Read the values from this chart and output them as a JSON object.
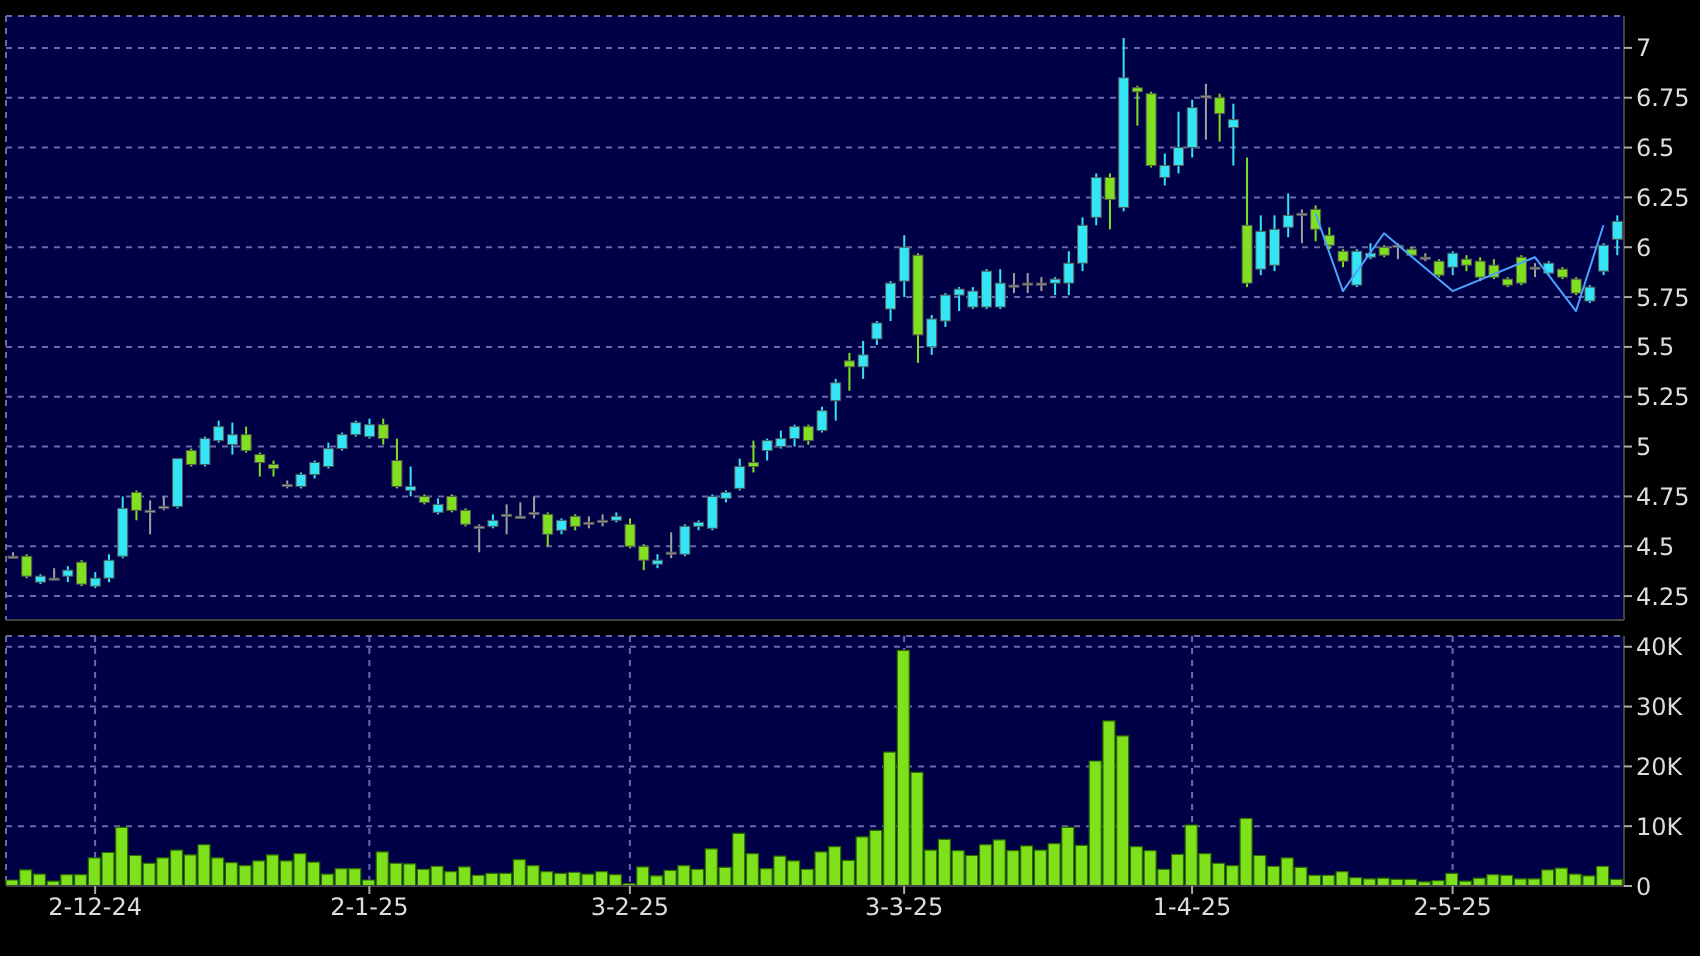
{
  "chart_data": [
    {
      "type": "candlestick",
      "categories": [
        null,
        null,
        null,
        null,
        null,
        null,
        null,
        null,
        null,
        null,
        null,
        null,
        null,
        null,
        null,
        null,
        null,
        null,
        null,
        null,
        null,
        null,
        null,
        null,
        null,
        null,
        null,
        null,
        null,
        null,
        null,
        null,
        null,
        null,
        null,
        null,
        null,
        null,
        null,
        null,
        null,
        null,
        null,
        null,
        null,
        null,
        null,
        null,
        null,
        null,
        null,
        null,
        null,
        null,
        null,
        null,
        null,
        null,
        null,
        null,
        null,
        null,
        null,
        null,
        null,
        null,
        null,
        null,
        null,
        null,
        null,
        null,
        null,
        null,
        null,
        null,
        null,
        null,
        null,
        null,
        null,
        null,
        null,
        null,
        null,
        null,
        null,
        null,
        null,
        null,
        null,
        null,
        null,
        null,
        null,
        null,
        null,
        null,
        null,
        null,
        null,
        null,
        null,
        null,
        null,
        null,
        null,
        null,
        null,
        null,
        null,
        null,
        null,
        null,
        null,
        null,
        null,
        null
      ],
      "ohlc": [
        [
          4.45,
          4.47,
          4.44,
          4.45
        ],
        [
          4.45,
          4.46,
          4.34,
          4.35
        ],
        [
          4.32,
          4.36,
          4.31,
          4.35
        ],
        [
          4.34,
          4.39,
          4.33,
          4.34
        ],
        [
          4.35,
          4.4,
          4.32,
          4.38
        ],
        [
          4.42,
          4.43,
          4.3,
          4.31
        ],
        [
          4.3,
          4.37,
          4.29,
          4.34
        ],
        [
          4.34,
          4.46,
          4.32,
          4.43
        ],
        [
          4.45,
          4.75,
          4.44,
          4.69
        ],
        [
          4.77,
          4.78,
          4.63,
          4.68
        ],
        [
          4.68,
          4.73,
          4.56,
          4.68
        ],
        [
          4.7,
          4.75,
          4.68,
          4.7
        ],
        [
          4.7,
          4.94,
          4.69,
          4.94
        ],
        [
          4.98,
          4.99,
          4.9,
          4.91
        ],
        [
          4.91,
          5.05,
          4.9,
          5.04
        ],
        [
          5.03,
          5.13,
          5.02,
          5.1
        ],
        [
          5.01,
          5.12,
          4.96,
          5.06
        ],
        [
          5.06,
          5.1,
          4.97,
          4.98
        ],
        [
          4.96,
          4.97,
          4.85,
          4.92
        ],
        [
          4.91,
          4.93,
          4.85,
          4.89
        ],
        [
          4.81,
          4.83,
          4.79,
          4.81
        ],
        [
          4.8,
          4.87,
          4.79,
          4.86
        ],
        [
          4.86,
          4.93,
          4.84,
          4.92
        ],
        [
          4.9,
          5.02,
          4.89,
          4.99
        ],
        [
          4.99,
          5.07,
          4.98,
          5.06
        ],
        [
          5.06,
          5.13,
          5.05,
          5.12
        ],
        [
          5.05,
          5.14,
          5.04,
          5.11
        ],
        [
          5.11,
          5.14,
          5.01,
          5.04
        ],
        [
          4.93,
          5.04,
          4.79,
          4.8
        ],
        [
          4.78,
          4.9,
          4.75,
          4.8
        ],
        [
          4.75,
          4.76,
          4.71,
          4.72
        ],
        [
          4.67,
          4.74,
          4.66,
          4.71
        ],
        [
          4.75,
          4.76,
          4.67,
          4.68
        ],
        [
          4.68,
          4.69,
          4.6,
          4.61
        ],
        [
          4.6,
          4.61,
          4.47,
          4.6
        ],
        [
          4.6,
          4.66,
          4.59,
          4.63
        ],
        [
          4.66,
          4.71,
          4.56,
          4.66
        ],
        [
          4.65,
          4.72,
          4.64,
          4.65
        ],
        [
          4.67,
          4.75,
          4.64,
          4.67
        ],
        [
          4.66,
          4.67,
          4.5,
          4.56
        ],
        [
          4.58,
          4.64,
          4.56,
          4.63
        ],
        [
          4.65,
          4.66,
          4.58,
          4.6
        ],
        [
          4.62,
          4.65,
          4.59,
          4.62
        ],
        [
          4.63,
          4.66,
          4.6,
          4.63
        ],
        [
          4.63,
          4.67,
          4.62,
          4.65
        ],
        [
          4.61,
          4.64,
          4.49,
          4.5
        ],
        [
          4.5,
          4.51,
          4.38,
          4.43
        ],
        [
          4.41,
          4.46,
          4.39,
          4.43
        ],
        [
          4.47,
          4.57,
          4.44,
          4.47
        ],
        [
          4.46,
          4.61,
          4.45,
          4.6
        ],
        [
          4.6,
          4.63,
          4.58,
          4.62
        ],
        [
          4.59,
          4.76,
          4.58,
          4.75
        ],
        [
          4.74,
          4.78,
          4.72,
          4.77
        ],
        [
          4.79,
          4.94,
          4.78,
          4.9
        ],
        [
          4.92,
          5.03,
          4.87,
          4.9
        ],
        [
          4.98,
          5.04,
          4.93,
          5.03
        ],
        [
          5.0,
          5.08,
          4.99,
          5.04
        ],
        [
          5.04,
          5.11,
          5.0,
          5.1
        ],
        [
          5.1,
          5.11,
          5.01,
          5.03
        ],
        [
          5.08,
          5.2,
          5.07,
          5.18
        ],
        [
          5.23,
          5.34,
          5.13,
          5.32
        ],
        [
          5.43,
          5.47,
          5.28,
          5.4
        ],
        [
          5.4,
          5.53,
          5.34,
          5.46
        ],
        [
          5.54,
          5.63,
          5.51,
          5.62
        ],
        [
          5.69,
          5.83,
          5.63,
          5.82
        ],
        [
          5.83,
          6.06,
          5.75,
          6.0
        ],
        [
          5.96,
          5.97,
          5.42,
          5.56
        ],
        [
          5.5,
          5.66,
          5.46,
          5.64
        ],
        [
          5.63,
          5.77,
          5.6,
          5.76
        ],
        [
          5.76,
          5.8,
          5.68,
          5.79
        ],
        [
          5.7,
          5.8,
          5.69,
          5.78
        ],
        [
          5.7,
          5.89,
          5.69,
          5.88
        ],
        [
          5.7,
          5.89,
          5.69,
          5.82
        ],
        [
          5.81,
          5.87,
          5.77,
          5.81
        ],
        [
          5.82,
          5.87,
          5.77,
          5.82
        ],
        [
          5.82,
          5.85,
          5.78,
          5.82
        ],
        [
          5.82,
          5.85,
          5.76,
          5.84
        ],
        [
          5.82,
          5.98,
          5.76,
          5.92
        ],
        [
          5.92,
          6.15,
          5.88,
          6.11
        ],
        [
          6.15,
          6.37,
          6.11,
          6.35
        ],
        [
          6.35,
          6.37,
          6.09,
          6.24
        ],
        [
          6.2,
          7.05,
          6.18,
          6.85
        ],
        [
          6.8,
          6.81,
          6.61,
          6.78
        ],
        [
          6.77,
          6.78,
          6.4,
          6.41
        ],
        [
          6.35,
          6.47,
          6.31,
          6.41
        ],
        [
          6.41,
          6.68,
          6.37,
          6.5
        ],
        [
          6.5,
          6.74,
          6.45,
          6.7
        ],
        [
          6.76,
          6.82,
          6.54,
          6.76
        ],
        [
          6.75,
          6.77,
          6.53,
          6.67
        ],
        [
          6.6,
          6.72,
          6.41,
          6.64
        ],
        [
          6.11,
          6.45,
          5.8,
          5.82
        ],
        [
          5.89,
          6.16,
          5.86,
          6.08
        ],
        [
          5.91,
          6.16,
          5.88,
          6.09
        ],
        [
          6.1,
          6.27,
          6.05,
          6.16
        ],
        [
          6.17,
          6.19,
          6.02,
          6.17
        ],
        [
          6.19,
          6.21,
          6.03,
          6.09
        ],
        [
          6.06,
          6.1,
          5.99,
          6.01
        ],
        [
          5.98,
          5.99,
          5.9,
          5.93
        ],
        [
          5.81,
          5.99,
          5.8,
          5.98
        ],
        [
          5.95,
          6.02,
          5.94,
          5.97
        ],
        [
          6.0,
          6.01,
          5.95,
          5.96
        ],
        [
          6.01,
          6.02,
          5.94,
          6.01
        ],
        [
          5.99,
          6.0,
          5.95,
          5.96
        ],
        [
          5.95,
          5.97,
          5.93,
          5.95
        ],
        [
          5.93,
          5.94,
          5.85,
          5.86
        ],
        [
          5.9,
          5.98,
          5.86,
          5.97
        ],
        [
          5.94,
          5.96,
          5.88,
          5.91
        ],
        [
          5.93,
          5.95,
          5.83,
          5.85
        ],
        [
          5.91,
          5.94,
          5.84,
          5.85
        ],
        [
          5.84,
          5.85,
          5.8,
          5.81
        ],
        [
          5.95,
          5.96,
          5.81,
          5.82
        ],
        [
          5.9,
          5.92,
          5.85,
          5.9
        ],
        [
          5.87,
          5.93,
          5.86,
          5.92
        ],
        [
          5.89,
          5.9,
          5.84,
          5.85
        ],
        [
          5.84,
          5.85,
          5.76,
          5.77
        ],
        [
          5.73,
          5.81,
          5.72,
          5.8
        ],
        [
          5.88,
          6.02,
          5.86,
          6.01
        ],
        [
          6.04,
          6.16,
          5.96,
          6.13
        ]
      ],
      "colors": [
        "#a0a0a0",
        "#80e020",
        "#33e5f5",
        "#a0a0a0",
        "#33e5f5",
        "#80e020",
        "#33e5f5",
        "#33e5f5",
        "#33e5f5",
        "#80e020",
        "#a0a0a0",
        "#a0a0a0",
        "#33e5f5",
        "#80e020",
        "#33e5f5",
        "#33e5f5",
        "#33e5f5",
        "#80e020",
        "#80e020",
        "#80e020",
        "#a0a0a0",
        "#33e5f5",
        "#33e5f5",
        "#33e5f5",
        "#33e5f5",
        "#33e5f5",
        "#33e5f5",
        "#80e020",
        "#80e020",
        "#33e5f5",
        "#80e020",
        "#33e5f5",
        "#80e020",
        "#80e020",
        "#a0a0a0",
        "#33e5f5",
        "#a0a0a0",
        "#a0a0a0",
        "#a0a0a0",
        "#80e020",
        "#33e5f5",
        "#80e020",
        "#a0a0a0",
        "#a0a0a0",
        "#33e5f5",
        "#80e020",
        "#80e020",
        "#33e5f5",
        "#a0a0a0",
        "#33e5f5",
        "#33e5f5",
        "#33e5f5",
        "#33e5f5",
        "#33e5f5",
        "#80e020",
        "#33e5f5",
        "#33e5f5",
        "#33e5f5",
        "#80e020",
        "#33e5f5",
        "#33e5f5",
        "#80e020",
        "#33e5f5",
        "#33e5f5",
        "#33e5f5",
        "#33e5f5",
        "#80e020",
        "#33e5f5",
        "#33e5f5",
        "#33e5f5",
        "#33e5f5",
        "#33e5f5",
        "#33e5f5",
        "#a0a0a0",
        "#a0a0a0",
        "#a0a0a0",
        "#33e5f5",
        "#33e5f5",
        "#33e5f5",
        "#33e5f5",
        "#80e020",
        "#33e5f5",
        "#80e020",
        "#80e020",
        "#33e5f5",
        "#33e5f5",
        "#33e5f5",
        "#a0a0a0",
        "#80e020",
        "#33e5f5",
        "#80e020",
        "#33e5f5",
        "#33e5f5",
        "#33e5f5",
        "#a0a0a0",
        "#80e020",
        "#80e020",
        "#80e020",
        "#33e5f5",
        "#33e5f5",
        "#80e020",
        "#a0a0a0",
        "#80e020",
        "#a0a0a0",
        "#80e020",
        "#33e5f5",
        "#80e020",
        "#80e020",
        "#80e020",
        "#80e020",
        "#80e020",
        "#a0a0a0",
        "#33e5f5",
        "#80e020",
        "#80e020",
        "#33e5f5",
        "#33e5f5",
        "#33e5f5"
      ],
      "series": [
        {
          "type": "line",
          "color": "#4aa3ff",
          "values": [
            null,
            null,
            null,
            null,
            null,
            null,
            null,
            null,
            null,
            null,
            null,
            null,
            null,
            null,
            null,
            null,
            null,
            null,
            null,
            null,
            null,
            null,
            null,
            null,
            null,
            null,
            null,
            null,
            null,
            null,
            null,
            null,
            null,
            null,
            null,
            null,
            null,
            null,
            null,
            null,
            null,
            null,
            null,
            null,
            null,
            null,
            null,
            null,
            null,
            null,
            null,
            null,
            null,
            null,
            null,
            null,
            null,
            null,
            null,
            null,
            null,
            null,
            null,
            null,
            null,
            null,
            null,
            null,
            null,
            null,
            null,
            null,
            null,
            null,
            null,
            null,
            null,
            null,
            null,
            null,
            null,
            null,
            null,
            null,
            null,
            null,
            null,
            null,
            null,
            null,
            null,
            null,
            null,
            null,
            null,
            6.17,
            null,
            5.78,
            null,
            null,
            6.07,
            null,
            null,
            null,
            null,
            5.78,
            null,
            null,
            null,
            null,
            null,
            5.95,
            null,
            null,
            5.68,
            null,
            6.11,
            null
          ]
        }
      ],
      "ylim": [
        4.13,
        7.16
      ],
      "yticks": [
        4.25,
        4.5,
        4.75,
        5,
        5.25,
        5.5,
        5.75,
        6,
        6.25,
        6.5,
        6.75,
        7
      ],
      "grid": true,
      "tick_labels": "y"
    },
    {
      "type": "bar",
      "categories": [
        null,
        null,
        null,
        null,
        null,
        null,
        "2-12-24",
        null,
        null,
        null,
        null,
        null,
        null,
        null,
        null,
        null,
        null,
        null,
        null,
        null,
        null,
        null,
        null,
        null,
        null,
        null,
        "2-1-25",
        null,
        null,
        null,
        null,
        null,
        null,
        null,
        null,
        null,
        null,
        null,
        null,
        null,
        null,
        null,
        null,
        null,
        null,
        "3-2-25",
        null,
        null,
        null,
        null,
        null,
        null,
        null,
        null,
        null,
        null,
        null,
        null,
        null,
        null,
        null,
        null,
        null,
        null,
        null,
        "3-3-25",
        null,
        null,
        null,
        null,
        null,
        null,
        null,
        null,
        null,
        null,
        null,
        null,
        null,
        null,
        null,
        null,
        null,
        null,
        null,
        null,
        "1-4-25",
        null,
        null,
        null,
        null,
        null,
        null,
        null,
        null,
        null,
        null,
        null,
        null,
        null,
        null,
        null,
        null,
        null,
        null,
        "2-5-25",
        null,
        null,
        null,
        null,
        null,
        null,
        null,
        null,
        null,
        null,
        null,
        null
      ],
      "values": [
        1000,
        2700,
        2000,
        800,
        1900,
        1900,
        4700,
        5600,
        9800,
        5100,
        3800,
        4700,
        6000,
        5200,
        6900,
        4700,
        3900,
        3400,
        4200,
        5200,
        4200,
        5400,
        4000,
        2000,
        2900,
        2900,
        1000,
        5700,
        3800,
        3700,
        2800,
        3300,
        2400,
        3200,
        1800,
        2100,
        2100,
        4400,
        3400,
        2400,
        2100,
        2300,
        2000,
        2400,
        1900,
        400,
        3200,
        1700,
        2600,
        3400,
        2800,
        6200,
        3100,
        8800,
        5400,
        2900,
        5000,
        4200,
        2800,
        5700,
        6600,
        4300,
        8200,
        9300,
        22400,
        39400,
        19000,
        6000,
        7800,
        5900,
        5100,
        6900,
        7700,
        5900,
        6700,
        6000,
        7100,
        9800,
        6800,
        20900,
        27600,
        25100,
        6600,
        5900,
        2800,
        5300,
        10200,
        5400,
        3800,
        3400,
        11300,
        5100,
        3300,
        4700,
        3100,
        1800,
        1800,
        2400,
        1400,
        1200,
        1300,
        1100,
        1100,
        700,
        900,
        2100,
        800,
        1300,
        1900,
        1800,
        1200,
        1200,
        2700,
        3000,
        2000,
        1700,
        3300,
        1100
      ],
      "color": "#7fe11b",
      "ylim": [
        0,
        41800
      ],
      "yticks": [
        0,
        {
          "value": 10000,
          "label": "10K"
        },
        {
          "value": 20000,
          "label": "20K"
        },
        {
          "value": 30000,
          "label": "30K"
        },
        {
          "value": 40000,
          "label": "40K"
        }
      ],
      "grid": true
    }
  ]
}
